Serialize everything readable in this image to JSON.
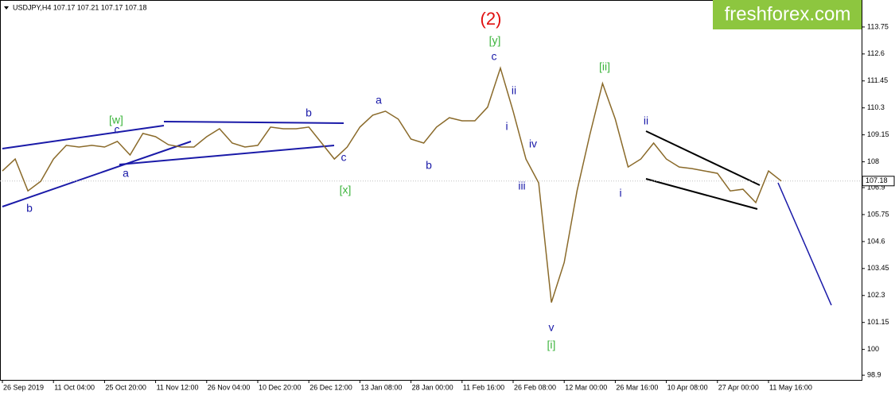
{
  "header": "USDJPY,H4  107.17 107.21 107.17 107.18",
  "logo": "freshforex.com",
  "chart_data": {
    "type": "line",
    "categories": [
      "26 Sep 2019",
      null,
      null,
      null,
      "11 Oct 04:00",
      null,
      null,
      null,
      "25 Oct 20:00",
      null,
      null,
      null,
      "11 Nov 12:00",
      null,
      null,
      null,
      "26 Nov 04:00",
      null,
      null,
      null,
      "10 Dec 20:00",
      null,
      null,
      null,
      "26 Dec 12:00",
      null,
      null,
      null,
      "13 Jan 08:00",
      null,
      null,
      null,
      "28 Jan 00:00",
      null,
      null,
      null,
      "11 Feb 16:00",
      null,
      null,
      null,
      "26 Feb 08:00",
      null,
      null,
      null,
      "12 Mar 00:00",
      null,
      null,
      null,
      "26 Mar 16:00",
      null,
      null,
      null,
      "10 Apr 08:00",
      null,
      null,
      null,
      "27 Apr 00:00",
      null,
      null,
      null,
      "11 May 16:00",
      null,
      null,
      null,
      null,
      null,
      null,
      null
    ],
    "series": [
      {
        "color": "#8a6a2a",
        "values": [
          107.61,
          108.12,
          106.76,
          107.17,
          108.12,
          108.7,
          108.63,
          108.7,
          108.63,
          108.87,
          108.29,
          109.21,
          109.07,
          108.73,
          108.63,
          108.63,
          109.07,
          109.41,
          108.8,
          108.63,
          108.7,
          109.48,
          109.41,
          109.41,
          109.48,
          108.8,
          108.12,
          108.63,
          109.48,
          109.99,
          110.16,
          109.82,
          108.97,
          108.8,
          109.48,
          109.88,
          109.75,
          109.75,
          110.33,
          112.0,
          110.16,
          108.12,
          107.1,
          102.0,
          103.71,
          106.76,
          109.14,
          111.34,
          109.82,
          107.78,
          108.12,
          108.8,
          108.12,
          107.78,
          107.71,
          107.61,
          107.51,
          106.76,
          106.83,
          106.26,
          107.61,
          107.18,
          null,
          null,
          null,
          null,
          null,
          null
        ]
      }
    ],
    "current_price": 107.18,
    "ylim": [
      98.7,
      114.9
    ],
    "yticks": [
      98.9,
      100.0,
      101.15,
      102.3,
      103.45,
      104.6,
      105.75,
      106.9,
      108.0,
      109.15,
      110.3,
      111.45,
      112.6,
      113.75
    ],
    "annotations": [
      {
        "text": "(2)",
        "color": "#e01010"
      },
      {
        "text": "[y]",
        "color": "#3cb43c"
      },
      {
        "text": "c",
        "color": "#1a1aa8"
      },
      {
        "text": "ii",
        "color": "#1a1aa8"
      },
      {
        "text": "i",
        "color": "#1a1aa8"
      },
      {
        "text": "iv",
        "color": "#1a1aa8"
      },
      {
        "text": "iii",
        "color": "#1a1aa8"
      },
      {
        "text": "v",
        "color": "#1a1aa8"
      },
      {
        "text": "[i]",
        "color": "#3cb43c"
      },
      {
        "text": "[ii]",
        "color": "#3cb43c"
      },
      {
        "text": "ii",
        "color": "#1a1aa8"
      },
      {
        "text": "i",
        "color": "#1a1aa8"
      },
      {
        "text": "[w]",
        "color": "#3cb43c"
      },
      {
        "text": "c",
        "color": "#1a1aa8"
      },
      {
        "text": "a",
        "color": "#1a1aa8"
      },
      {
        "text": "b",
        "color": "#1a1aa8"
      },
      {
        "text": "b",
        "color": "#1a1aa8"
      },
      {
        "text": "c",
        "color": "#1a1aa8"
      },
      {
        "text": "[x]",
        "color": "#3cb43c"
      },
      {
        "text": "a",
        "color": "#1a1aa8"
      },
      {
        "text": "b",
        "color": "#1a1aa8"
      }
    ]
  }
}
